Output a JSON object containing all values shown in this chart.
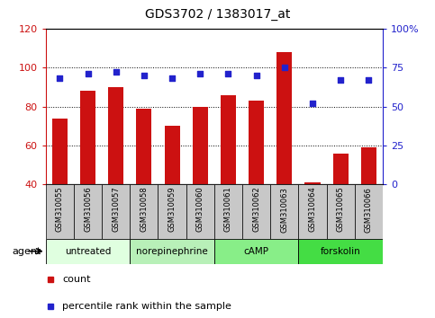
{
  "title": "GDS3702 / 1383017_at",
  "samples": [
    "GSM310055",
    "GSM310056",
    "GSM310057",
    "GSM310058",
    "GSM310059",
    "GSM310060",
    "GSM310061",
    "GSM310062",
    "GSM310063",
    "GSM310064",
    "GSM310065",
    "GSM310066"
  ],
  "count_values": [
    74,
    88,
    90,
    79,
    70,
    80,
    86,
    83,
    108,
    41,
    56,
    59
  ],
  "percentile_values": [
    68,
    71,
    72,
    70,
    68,
    71,
    71,
    70,
    75,
    52,
    67,
    67
  ],
  "ylim_left": [
    40,
    120
  ],
  "ylim_right": [
    0,
    100
  ],
  "yticks_left": [
    40,
    60,
    80,
    100,
    120
  ],
  "yticks_right": [
    0,
    25,
    50,
    75,
    100
  ],
  "yticklabels_right": [
    "0",
    "25",
    "50",
    "75",
    "100%"
  ],
  "bar_color": "#cc1111",
  "dot_color": "#2222cc",
  "agent_groups": [
    {
      "label": "untreated",
      "indices": [
        0,
        1,
        2
      ],
      "color": "#e0ffe0"
    },
    {
      "label": "norepinephrine",
      "indices": [
        3,
        4,
        5
      ],
      "color": "#b8f0b8"
    },
    {
      "label": "cAMP",
      "indices": [
        6,
        7,
        8
      ],
      "color": "#88ee88"
    },
    {
      "label": "forskolin",
      "indices": [
        9,
        10,
        11
      ],
      "color": "#44dd44"
    }
  ],
  "agent_label": "agent",
  "grid_color": "black",
  "xlabel_bg": "#c8c8c8",
  "title_fontsize": 10
}
